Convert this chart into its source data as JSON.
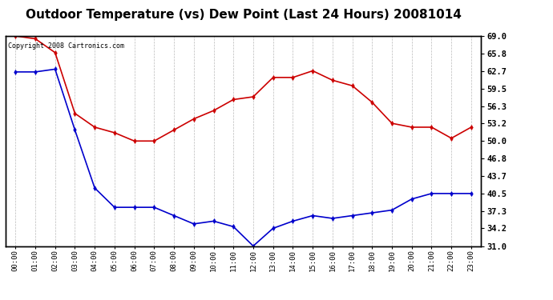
{
  "title": "Outdoor Temperature (vs) Dew Point (Last 24 Hours) 20081014",
  "copyright_text": "Copyright 2008 Cartronics.com",
  "x_labels": [
    "00:00",
    "01:00",
    "02:00",
    "03:00",
    "04:00",
    "05:00",
    "06:00",
    "07:00",
    "08:00",
    "09:00",
    "10:00",
    "11:00",
    "12:00",
    "13:00",
    "14:00",
    "15:00",
    "16:00",
    "17:00",
    "18:00",
    "19:00",
    "20:00",
    "21:00",
    "22:00",
    "23:00"
  ],
  "temp_data": [
    69.0,
    68.5,
    66.0,
    55.0,
    52.5,
    51.5,
    50.0,
    50.0,
    52.0,
    54.0,
    55.5,
    57.5,
    58.0,
    61.5,
    61.5,
    62.7,
    61.0,
    60.0,
    57.0,
    53.2,
    52.5,
    52.5,
    50.5,
    52.5
  ],
  "dew_data": [
    62.5,
    62.5,
    63.0,
    52.0,
    41.5,
    38.0,
    38.0,
    38.0,
    36.5,
    35.0,
    35.5,
    34.5,
    31.0,
    34.2,
    35.5,
    36.5,
    36.0,
    36.5,
    37.0,
    37.5,
    39.5,
    40.5,
    40.5,
    40.5
  ],
  "temp_color": "#cc0000",
  "dew_color": "#0000cc",
  "ylim_min": 31.0,
  "ylim_max": 69.0,
  "yticks": [
    31.0,
    34.2,
    37.3,
    40.5,
    43.7,
    46.8,
    50.0,
    53.2,
    56.3,
    59.5,
    62.7,
    65.8,
    69.0
  ],
  "background_color": "#ffffff",
  "plot_bg_color": "#ffffff",
  "grid_color": "#bbbbbb",
  "title_fontsize": 11,
  "marker": "d",
  "marker_size": 3,
  "linewidth": 1.2
}
